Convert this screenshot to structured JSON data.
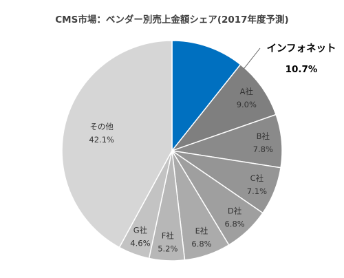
{
  "chart_data": {
    "type": "pie",
    "title": "CMS市場：ベンダー別売上金額シェア(2017年度予測)",
    "unit": "%",
    "start": "12 o'clock",
    "direction": "clockwise",
    "slices": [
      {
        "label": "インフォネット",
        "value": 10.7,
        "value_label": "10.7%",
        "color": "#0070C0",
        "label_color": "#000000",
        "label_weight": "bold",
        "label_placement": "outside-callout"
      },
      {
        "label": "A社",
        "value": 9.0,
        "value_label": "9.0%",
        "color": "#7F7F7F",
        "label_color": "#333333",
        "label_weight": "normal",
        "label_placement": "inside"
      },
      {
        "label": "B社",
        "value": 7.8,
        "value_label": "7.8%",
        "color": "#8A8A8A",
        "label_color": "#333333",
        "label_weight": "normal",
        "label_placement": "inside"
      },
      {
        "label": "C社",
        "value": 7.1,
        "value_label": "7.1%",
        "color": "#959595",
        "label_color": "#333333",
        "label_weight": "normal",
        "label_placement": "inside"
      },
      {
        "label": "D社",
        "value": 6.8,
        "value_label": "6.8%",
        "color": "#9F9F9F",
        "label_color": "#333333",
        "label_weight": "normal",
        "label_placement": "inside"
      },
      {
        "label": "E社",
        "value": 6.8,
        "value_label": "6.8%",
        "color": "#ABABAB",
        "label_color": "#333333",
        "label_weight": "normal",
        "label_placement": "inside"
      },
      {
        "label": "F社",
        "value": 5.2,
        "value_label": "5.2%",
        "color": "#B7B7B7",
        "label_color": "#333333",
        "label_weight": "normal",
        "label_placement": "inside"
      },
      {
        "label": "G社",
        "value": 4.6,
        "value_label": "4.6%",
        "color": "#C3C3C3",
        "label_color": "#333333",
        "label_weight": "normal",
        "label_placement": "inside"
      },
      {
        "label": "その他",
        "value": 42.1,
        "value_label": "42.1%",
        "color": "#D6D6D6",
        "label_color": "#333333",
        "label_weight": "normal",
        "label_placement": "inside"
      }
    ]
  }
}
